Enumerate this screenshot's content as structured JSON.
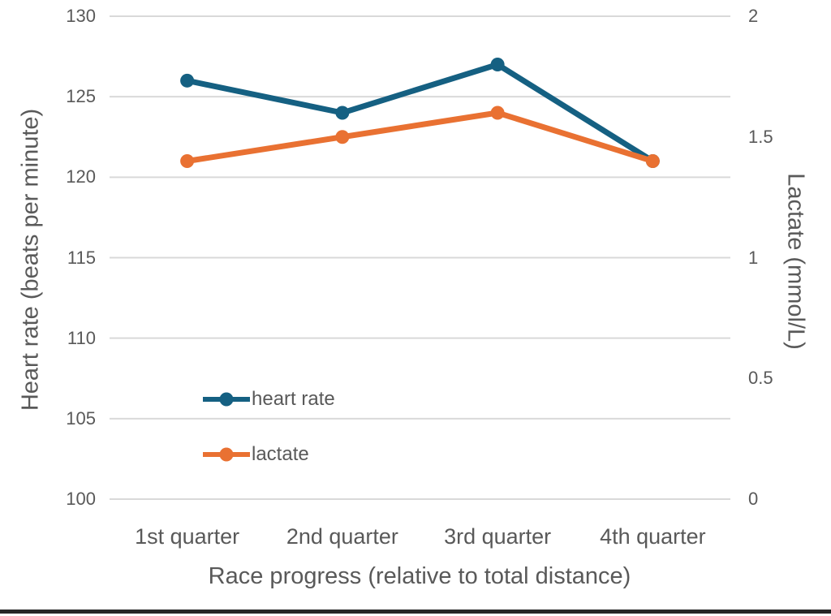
{
  "chart_data": {
    "type": "line",
    "categories": [
      "1st quarter",
      "2nd quarter",
      "3rd quarter",
      "4th quarter"
    ],
    "series": [
      {
        "name": "heart rate",
        "axis": "left",
        "color": "#156082",
        "values": [
          126,
          124,
          127,
          121
        ]
      },
      {
        "name": "lactate",
        "axis": "right",
        "color": "#E97132",
        "values": [
          1.4,
          1.5,
          1.6,
          1.4
        ]
      }
    ],
    "xlabel": "Race progress (relative to total distance)",
    "ylabel_left": "Heart rate (beats per minute)",
    "ylabel_right": "Lactate (mmol/L)",
    "y_left": {
      "min": 100,
      "max": 130,
      "ticks": [
        {
          "v": 130,
          "label": "130"
        },
        {
          "v": 125,
          "label": "125"
        },
        {
          "v": 120,
          "label": "120"
        },
        {
          "v": 115,
          "label": "115"
        },
        {
          "v": 110,
          "label": "110"
        },
        {
          "v": 105,
          "label": "105"
        },
        {
          "v": 100,
          "label": "100"
        }
      ]
    },
    "y_right": {
      "min": 0,
      "max": 2,
      "ticks": [
        {
          "v": 2,
          "label": "2"
        },
        {
          "v": 1.5,
          "label": "1.5"
        },
        {
          "v": 1,
          "label": "1"
        },
        {
          "v": 0.5,
          "label": "0.5"
        },
        {
          "v": 0,
          "label": "0"
        }
      ]
    },
    "grid": true,
    "legend_position": "inside-left-bottom"
  },
  "colors": {
    "gridline": "#D9D9D9",
    "text": "#595959",
    "bottom_bar": "#262626"
  }
}
